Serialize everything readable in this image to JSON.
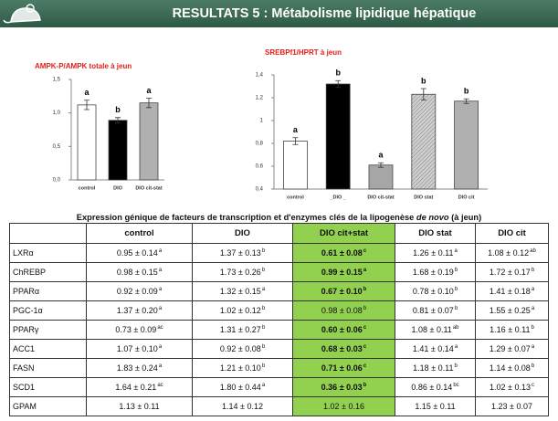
{
  "header": {
    "title": "RESULTATS 5 : Métabolisme lipidique hépatique"
  },
  "chart_data": [
    {
      "type": "bar",
      "title": "AMPK-P/AMPK totale à jeun",
      "categories": [
        "control",
        "DIO",
        "DIO cit-stat"
      ],
      "values": [
        1.12,
        0.89,
        1.15
      ],
      "errors": [
        0.07,
        0.04,
        0.07
      ],
      "annotations": [
        "a",
        "b",
        "a"
      ],
      "colors": [
        "#ffffff",
        "#000000",
        "#b0b0b0"
      ],
      "hatched": [
        false,
        false,
        false
      ],
      "ylim": [
        0,
        1.5
      ],
      "yticks": [
        {
          "value": 0,
          "label": "0,0"
        },
        {
          "value": 0.5,
          "label": "0,5"
        },
        {
          "value": 1,
          "label": "1,0"
        },
        {
          "value": 1.5,
          "label": "1,5"
        }
      ]
    },
    {
      "type": "bar",
      "title": "SREBPf1/HPRT à jeun",
      "categories": [
        "control",
        "_DIO _",
        "DIO cit-stat",
        "DIO stat",
        "DIO cit"
      ],
      "values": [
        0.82,
        1.32,
        0.61,
        1.23,
        1.17
      ],
      "errors": [
        0.03,
        0.03,
        0.02,
        0.05,
        0.02
      ],
      "annotations": [
        "a",
        "b",
        "a",
        "b",
        "b"
      ],
      "colors": [
        "#ffffff",
        "#000000",
        "#a6a6a6",
        "#c8c8c8",
        "#b0b0b0"
      ],
      "hatched": [
        false,
        false,
        false,
        true,
        false
      ],
      "ylim": [
        0.4,
        1.4
      ],
      "yticks": [
        {
          "value": 0.4,
          "label": "0,4"
        },
        {
          "value": 0.6,
          "label": "0,6"
        },
        {
          "value": 0.8,
          "label": "0,8"
        },
        {
          "value": 1,
          "label": "1"
        },
        {
          "value": 1.2,
          "label": "1,2"
        },
        {
          "value": 1.4,
          "label": "1,4"
        }
      ]
    }
  ],
  "table": {
    "caption": {
      "before": "Expression génique de facteurs de transcription et d'enzymes clés de la lipogenèse ",
      "italic": "de novo",
      "after": " (à jeun)"
    },
    "header": [
      "control",
      "DIO",
      "DIO cit+stat",
      "DIO stat",
      "DIO cit"
    ],
    "highlight_column": 2,
    "highlight_color": "#92d050",
    "rows": [
      {
        "label": "LXRα",
        "cells": [
          {
            "text": "0.95 ± 0.14",
            "sup": "a"
          },
          {
            "text": "1.37 ± 0.13",
            "sup": "b"
          },
          {
            "text": "0.61 ± 0.08",
            "sup": "c",
            "bold": true
          },
          {
            "text": "1.26 ± 0.11",
            "sup": "a"
          },
          {
            "text": "1.08 ± 0.12",
            "sup": "ab"
          }
        ]
      },
      {
        "label": "ChREBP",
        "cells": [
          {
            "text": "0.98 ± 0.15",
            "sup": "a"
          },
          {
            "text": "1.73 ± 0.26",
            "sup": "b"
          },
          {
            "text": "0.99 ± 0.15",
            "sup": "a",
            "bold": true
          },
          {
            "text": "1.68 ± 0.19",
            "sup": "b"
          },
          {
            "text": "1.72 ± 0.17",
            "sup": "b"
          }
        ]
      },
      {
        "label": "PPARα",
        "cells": [
          {
            "text": "0.92 ± 0.09",
            "sup": "a"
          },
          {
            "text": "1.32 ± 0.15",
            "sup": "a"
          },
          {
            "text": "0.67 ± 0.10",
            "sup": "b",
            "bold": true
          },
          {
            "text": "0.78 ± 0.10",
            "sup": "b"
          },
          {
            "text": "1.41 ± 0.18",
            "sup": "a"
          }
        ]
      },
      {
        "label": "PGC-1α",
        "cells": [
          {
            "text": "1.37 ± 0.20",
            "sup": "a"
          },
          {
            "text": "1.02 ± 0.12",
            "sup": "b"
          },
          {
            "text": "0.98 ± 0.08",
            "sup": "b"
          },
          {
            "text": "0.81 ± 0.07",
            "sup": "b"
          },
          {
            "text": "1.55 ± 0.25",
            "sup": "a"
          }
        ]
      },
      {
        "label": "PPARγ",
        "cells": [
          {
            "text": "0.73 ± 0.09",
            "sup": "ac"
          },
          {
            "text": "1.31 ± 0.27",
            "sup": "b"
          },
          {
            "text": "0.60 ± 0.06",
            "sup": "c",
            "bold": true
          },
          {
            "text": "1.08 ± 0.11",
            "sup": "ab"
          },
          {
            "text": "1.16 ± 0.11",
            "sup": "b"
          }
        ]
      },
      {
        "label": "ACC1",
        "cells": [
          {
            "text": "1.07 ± 0.10",
            "sup": "a"
          },
          {
            "text": "0.92 ± 0.08",
            "sup": "b"
          },
          {
            "text": "0.68 ± 0.03",
            "sup": "c",
            "bold": true
          },
          {
            "text": "1.41 ± 0.14",
            "sup": "a"
          },
          {
            "text": "1.29 ± 0.07",
            "sup": "a"
          }
        ]
      },
      {
        "label": "FASN",
        "cells": [
          {
            "text": "1.83 ± 0.24",
            "sup": "a"
          },
          {
            "text": "1.21 ± 0.10",
            "sup": "b"
          },
          {
            "text": "0.71 ± 0.06",
            "sup": "c",
            "bold": true
          },
          {
            "text": "1.18 ± 0.11",
            "sup": "b"
          },
          {
            "text": "1.14 ± 0.08",
            "sup": "b"
          }
        ]
      },
      {
        "label": "SCD1",
        "cells": [
          {
            "text": "1.64 ± 0.21",
            "sup": "ac"
          },
          {
            "text": "1.80 ± 0.44",
            "sup": "a"
          },
          {
            "text": "0.36 ± 0.03",
            "sup": "b",
            "bold": true
          },
          {
            "text": "0.86 ± 0.14",
            "sup": "bc"
          },
          {
            "text": "1.02 ± 0.13",
            "sup": "c"
          }
        ]
      },
      {
        "label": "GPAM",
        "cells": [
          {
            "text": "1.13 ± 0.11"
          },
          {
            "text": "1.14 ± 0.12"
          },
          {
            "text": "1.02 ± 0.16"
          },
          {
            "text": "1.15 ± 0.11"
          },
          {
            "text": "1.23 ± 0.07"
          }
        ]
      }
    ]
  }
}
